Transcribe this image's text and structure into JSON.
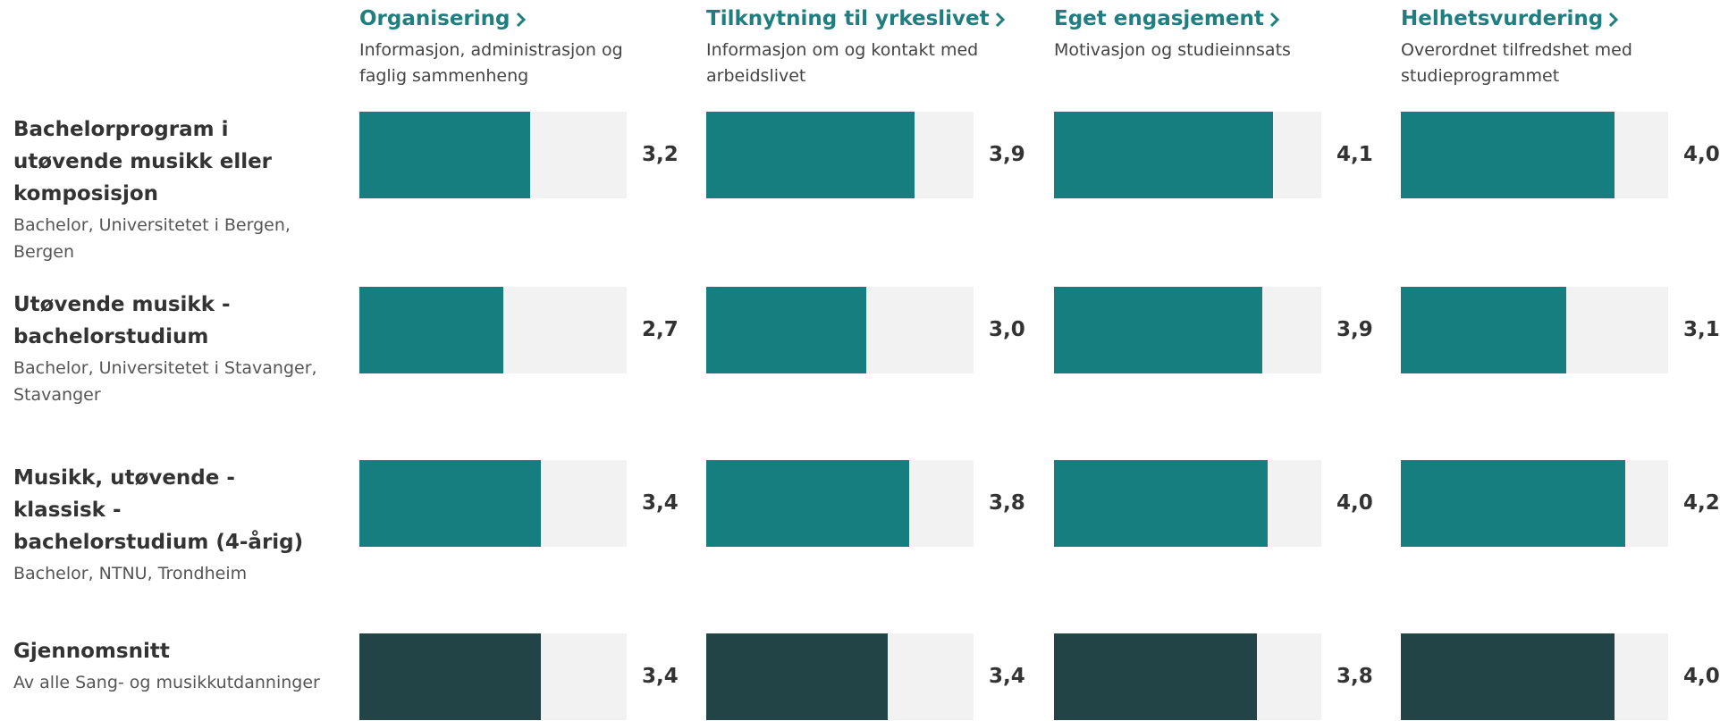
{
  "chart_data": {
    "type": "bar",
    "xlim": [
      0,
      5
    ],
    "track_color": "#f2f2f2",
    "columns": [
      {
        "title": "Organisering",
        "subtitle": "Informasjon, administrasjon og faglig sammenheng"
      },
      {
        "title": "Tilknytning til yrkeslivet",
        "subtitle": "Informasjon om og kontakt med arbeidslivet"
      },
      {
        "title": "Eget engasjement",
        "subtitle": "Motivasjon og studieinnsats"
      },
      {
        "title": "Helhetsvurdering",
        "subtitle": "Overordnet tilfredshet med studieprogrammet"
      }
    ],
    "rows": [
      {
        "title": "Bachelorprogram i utøvende musikk eller komposisjon",
        "subtitle": "Bachelor, Universitetet i Bergen, Bergen",
        "color": "#177e80",
        "values": [
          3.2,
          3.9,
          4.1,
          4.0
        ],
        "value_labels": [
          "3,2",
          "3,9",
          "4,1",
          "4,0"
        ]
      },
      {
        "title": "Utøvende musikk - bachelorstudium",
        "subtitle": "Bachelor, Universitetet i Stavanger, Stavanger",
        "color": "#177e80",
        "values": [
          2.7,
          3.0,
          3.9,
          3.1
        ],
        "value_labels": [
          "2,7",
          "3,0",
          "3,9",
          "3,1"
        ]
      },
      {
        "title": "Musikk, utøvende - klassisk - bachelorstudium (4-årig)",
        "subtitle": "Bachelor, NTNU, Trondheim",
        "color": "#177e80",
        "values": [
          3.4,
          3.8,
          4.0,
          4.2
        ],
        "value_labels": [
          "3,4",
          "3,8",
          "4,0",
          "4,2"
        ]
      },
      {
        "title": "Gjennomsnitt",
        "subtitle": "Av alle Sang- og musikkutdanninger",
        "color": "#224446",
        "values": [
          3.4,
          3.4,
          3.8,
          4.0
        ],
        "value_labels": [
          "3,4",
          "3,4",
          "3,8",
          "4,0"
        ]
      }
    ]
  }
}
